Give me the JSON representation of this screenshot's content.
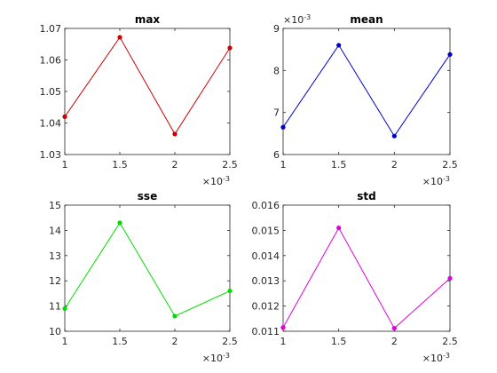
{
  "chart_data": [
    {
      "type": "line",
      "title": "max",
      "x": [
        0.001,
        0.0015,
        0.002,
        0.0025
      ],
      "y": [
        1.042,
        1.0672,
        1.0365,
        1.0638
      ],
      "xlim": [
        0.001,
        0.0025
      ],
      "ylim": [
        1.03,
        1.07
      ],
      "xticks": [
        0.001,
        0.0015,
        0.002,
        0.0025
      ],
      "xtick_labels": [
        "1",
        "1.5",
        "2",
        "2.5"
      ],
      "yticks": [
        1.03,
        1.04,
        1.05,
        1.06,
        1.07
      ],
      "ytick_labels": [
        "1.03",
        "1.04",
        "1.05",
        "1.06",
        "1.07"
      ],
      "x_exponent": {
        "base": "×10",
        "power": "-3"
      },
      "y_exponent": null,
      "color": "#cc0000",
      "grid": false,
      "marker": "dot"
    },
    {
      "type": "line",
      "title": "mean",
      "x": [
        0.001,
        0.0015,
        0.002,
        0.0025
      ],
      "y": [
        0.00665,
        0.0086,
        0.00644,
        0.00838
      ],
      "xlim": [
        0.001,
        0.0025
      ],
      "ylim": [
        0.006,
        0.009
      ],
      "xticks": [
        0.001,
        0.0015,
        0.002,
        0.0025
      ],
      "xtick_labels": [
        "1",
        "1.5",
        "2",
        "2.5"
      ],
      "yticks": [
        0.006,
        0.007,
        0.008,
        0.009
      ],
      "ytick_labels": [
        "6",
        "7",
        "8",
        "9"
      ],
      "x_exponent": {
        "base": "×10",
        "power": "-3"
      },
      "y_exponent": {
        "base": "×10",
        "power": "-3"
      },
      "color": "#0000cc",
      "grid": false,
      "marker": "dot"
    },
    {
      "type": "line",
      "title": "sse",
      "x": [
        0.001,
        0.0015,
        0.002,
        0.0025
      ],
      "y": [
        10.9,
        14.3,
        10.6,
        11.6
      ],
      "xlim": [
        0.001,
        0.0025
      ],
      "ylim": [
        10,
        15
      ],
      "xticks": [
        0.001,
        0.0015,
        0.002,
        0.0025
      ],
      "xtick_labels": [
        "1",
        "1.5",
        "2",
        "2.5"
      ],
      "yticks": [
        10,
        11,
        12,
        13,
        14,
        15
      ],
      "ytick_labels": [
        "10",
        "11",
        "12",
        "13",
        "14",
        "15"
      ],
      "x_exponent": {
        "base": "×10",
        "power": "-3"
      },
      "y_exponent": null,
      "color": "#00dd00",
      "grid": false,
      "marker": "dot"
    },
    {
      "type": "line",
      "title": "std",
      "x": [
        0.001,
        0.0015,
        0.002,
        0.0025
      ],
      "y": [
        0.01115,
        0.0151,
        0.01112,
        0.0131
      ],
      "xlim": [
        0.001,
        0.0025
      ],
      "ylim": [
        0.011,
        0.016
      ],
      "xticks": [
        0.001,
        0.0015,
        0.002,
        0.0025
      ],
      "xtick_labels": [
        "1",
        "1.5",
        "2",
        "2.5"
      ],
      "yticks": [
        0.011,
        0.012,
        0.013,
        0.014,
        0.015,
        0.016
      ],
      "ytick_labels": [
        "0.011",
        "0.012",
        "0.013",
        "0.014",
        "0.015",
        "0.016"
      ],
      "x_exponent": {
        "base": "×10",
        "power": "-3"
      },
      "y_exponent": null,
      "color": "#dd00dd",
      "grid": false,
      "marker": "dot"
    }
  ]
}
